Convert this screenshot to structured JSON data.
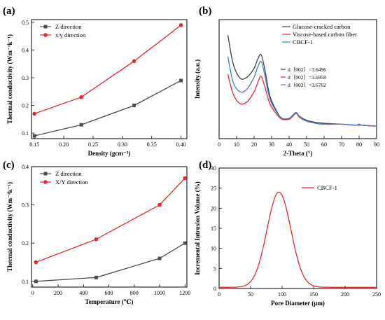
{
  "chart_data": [
    {
      "panel": "(a)",
      "type": "line",
      "xlabel": "Density (gcm⁻³)",
      "ylabel": "Thermal conductivity (Wm⁻¹k⁻¹)",
      "xlim": [
        0.145,
        0.41
      ],
      "ylim": [
        0.08,
        0.51
      ],
      "xticks": [
        0.15,
        0.2,
        0.25,
        0.3,
        0.35,
        0.4
      ],
      "xtick_labels": [
        "0.15",
        "0.20",
        "0.25",
        "0.30",
        "0.35",
        "0.40"
      ],
      "yticks": [
        0.1,
        0.2,
        0.3,
        0.4,
        0.5
      ],
      "ytick_labels": [
        "0.1",
        "0.2",
        "0.3",
        "0.4",
        "0.5"
      ],
      "legend_position": "top-left",
      "series": [
        {
          "name": "Z direction",
          "color": "#4d4d4d",
          "marker": "square",
          "x": [
            0.15,
            0.23,
            0.32,
            0.4
          ],
          "y": [
            0.09,
            0.13,
            0.2,
            0.29
          ]
        },
        {
          "name": "x/y direction",
          "color": "#e8282c",
          "marker": "circle",
          "x": [
            0.15,
            0.23,
            0.32,
            0.4
          ],
          "y": [
            0.17,
            0.23,
            0.36,
            0.49
          ]
        }
      ]
    },
    {
      "panel": "(b)",
      "type": "line",
      "xlabel": "2-Theta (°)",
      "ylabel": "Intensity (a.u.)",
      "xlim": [
        0,
        90
      ],
      "xticks": [
        0,
        10,
        20,
        30,
        40,
        50,
        60,
        70,
        80,
        90
      ],
      "xtick_labels": [
        "0",
        "10",
        "20",
        "30",
        "40",
        "50",
        "60",
        "70",
        "80",
        "90"
      ],
      "legend_position": "top-right",
      "annotations": [
        "d（002）=3.6496",
        "d（002）=3.6958",
        "d（002）=3.6762"
      ],
      "series": [
        {
          "name": "Glucose-cracked carbon",
          "color": "#404040",
          "x": [
            5,
            8,
            12,
            16,
            20,
            22,
            24,
            26,
            29,
            33,
            36,
            40,
            42,
            44,
            46,
            50,
            55,
            60,
            70,
            78,
            80,
            82,
            90
          ],
          "y": [
            100,
            71,
            56,
            57,
            66,
            75,
            80,
            66,
            38,
            22,
            15,
            15,
            18,
            21,
            17,
            13,
            11,
            10,
            9,
            8,
            9,
            8,
            7
          ]
        },
        {
          "name": "Viscose-based carbon fiber",
          "color": "#e8282c",
          "x": [
            5,
            8,
            12,
            16,
            20,
            22,
            24,
            26,
            29,
            33,
            36,
            40,
            42,
            44,
            46,
            50,
            55,
            60,
            70,
            78,
            80,
            82,
            90
          ],
          "y": [
            60,
            40,
            30,
            32,
            42,
            51,
            58,
            48,
            30,
            19,
            14,
            14,
            17,
            20,
            16,
            12,
            10,
            9,
            9,
            8,
            8,
            8,
            7
          ]
        },
        {
          "name": "CBCF-1",
          "color": "#3b7fcf",
          "x": [
            5,
            8,
            12,
            16,
            20,
            22,
            24,
            26,
            29,
            33,
            36,
            40,
            42,
            44,
            46,
            50,
            55,
            60,
            70,
            78,
            80,
            82,
            90
          ],
          "y": [
            78,
            52,
            42,
            45,
            57,
            67,
            73,
            60,
            35,
            21,
            15,
            15,
            18,
            21,
            17,
            12,
            10,
            9,
            9,
            8,
            9,
            8,
            7
          ]
        }
      ]
    },
    {
      "panel": "(c)",
      "type": "line",
      "xlabel": "Temperature (℃)",
      "ylabel": "Thermal conductivity (Wm⁻¹k⁻¹)",
      "xlim": [
        -10,
        1215
      ],
      "ylim": [
        0.085,
        0.4
      ],
      "xticks": [
        0,
        200,
        400,
        600,
        800,
        1000,
        1200
      ],
      "xtick_labels": [
        "0",
        "200",
        "400",
        "600",
        "800",
        "1000",
        "1200"
      ],
      "yticks": [
        0.1,
        0.2,
        0.3,
        0.4
      ],
      "ytick_labels": [
        "0.1",
        "0.2",
        "0.3",
        "0.4"
      ],
      "legend_position": "top-left",
      "series": [
        {
          "name": "Z direction",
          "color": "#4d4d4d",
          "marker": "square",
          "x": [
            25,
            500,
            1000,
            1200
          ],
          "y": [
            0.1,
            0.11,
            0.16,
            0.2
          ]
        },
        {
          "name": "X/Y direction",
          "color": "#e8282c",
          "marker": "circle",
          "x": [
            25,
            500,
            1000,
            1200
          ],
          "y": [
            0.15,
            0.21,
            0.3,
            0.37
          ]
        }
      ]
    },
    {
      "panel": "(d)",
      "type": "line",
      "xlabel": "Pore Diameter  (μm)",
      "ylabel": "Incremental Intrusion Volume (%)",
      "xlim": [
        0,
        250
      ],
      "ylim": [
        0,
        30
      ],
      "xticks": [
        0,
        50,
        100,
        150,
        200,
        250
      ],
      "xtick_labels": [
        "0",
        "50",
        "100",
        "150",
        "200",
        "250"
      ],
      "yticks": [
        0,
        5,
        10,
        15,
        20,
        25,
        30
      ],
      "ytick_labels": [
        "0",
        "5",
        "10",
        "15",
        "20",
        "25",
        "30"
      ],
      "legend_position": "top-right",
      "series": [
        {
          "name": "CBCF-1",
          "color": "#e8282c",
          "peak_x": 95,
          "peak_y": 24,
          "sigma": 19,
          "baseline": 0.3
        }
      ]
    }
  ]
}
